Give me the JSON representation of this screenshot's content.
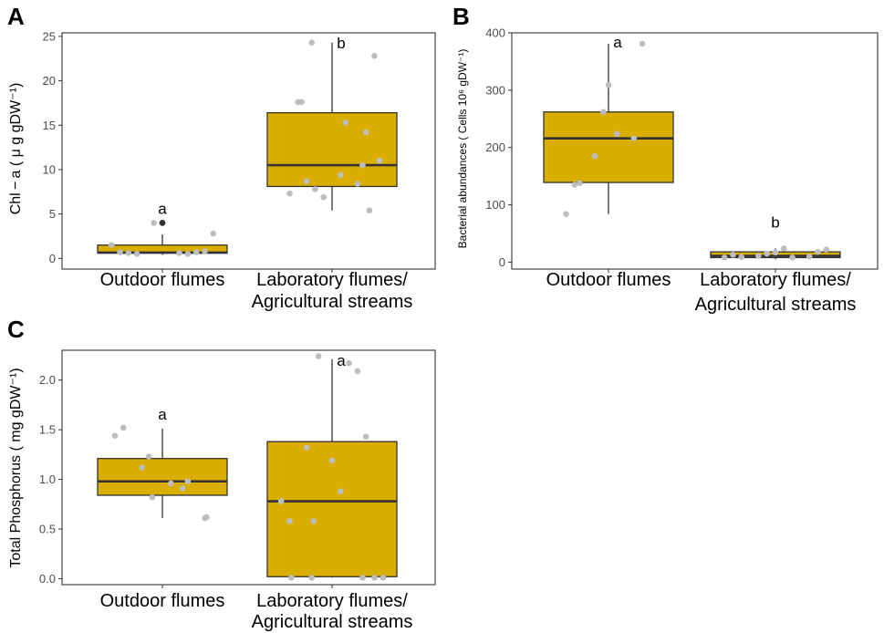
{
  "chart_data": [
    {
      "panel": "A",
      "type": "box",
      "categories": [
        [
          "Outdoor flumes"
        ],
        [
          "Laboratory flumes/",
          "Agricultural streams"
        ]
      ],
      "ylabel": "Chl − a ( μ g gDW⁻¹)",
      "yticks": [
        0,
        5,
        10,
        15,
        20,
        25
      ],
      "ylim": [
        -1.2,
        25.4
      ],
      "fill_color": "#d9ae00",
      "point_color": "#bdbdbd",
      "outlier_color": "#333333",
      "boxes": [
        {
          "q1": 0.6,
          "median": 0.65,
          "q3": 1.5,
          "whisker_low": 0.4,
          "whisker_high": 2.7,
          "outliers": [
            4.0
          ],
          "label": "a"
        },
        {
          "q1": 8.1,
          "median": 10.5,
          "q3": 16.4,
          "whisker_low": 5.4,
          "whisker_high": 24.3,
          "outliers": [],
          "label": "b"
        }
      ],
      "points": [
        [
          [
            -0.3,
            1.5
          ],
          [
            -0.2,
            0.6
          ],
          [
            -0.15,
            0.5
          ],
          [
            -0.05,
            4.0
          ],
          [
            0.1,
            0.6
          ],
          [
            0.15,
            0.5
          ],
          [
            0.2,
            0.7
          ],
          [
            0.25,
            0.8
          ],
          [
            0.3,
            2.8
          ],
          [
            -0.25,
            0.7
          ]
        ],
        [
          [
            -0.25,
            7.3
          ],
          [
            -0.15,
            8.7
          ],
          [
            -0.2,
            17.6
          ],
          [
            -0.18,
            17.6
          ],
          [
            -0.12,
            24.3
          ],
          [
            -0.1,
            7.8
          ],
          [
            -0.05,
            6.9
          ],
          [
            0.05,
            9.4
          ],
          [
            0.08,
            15.3
          ],
          [
            0.15,
            8.4
          ],
          [
            0.18,
            10.5
          ],
          [
            0.2,
            14.2
          ],
          [
            0.22,
            5.4
          ],
          [
            0.28,
            11.0
          ],
          [
            0.25,
            22.8
          ]
        ]
      ]
    },
    {
      "panel": "B",
      "type": "box",
      "categories": [
        [
          "Outdoor flumes"
        ],
        [
          "Laboratory flumes/",
          "Agricultural streams"
        ]
      ],
      "ylabel": "Bacterial abundances ( Cells 10⁶ gDW⁻¹)",
      "yticks": [
        0,
        100,
        200,
        300,
        400
      ],
      "ylim": [
        -12,
        400
      ],
      "fill_color": "#d9ae00",
      "point_color": "#bdbdbd",
      "outlier_color": "#333333",
      "boxes": [
        {
          "q1": 139,
          "median": 216,
          "q3": 262,
          "whisker_low": 84,
          "whisker_high": 381,
          "outliers": [],
          "label": "a"
        },
        {
          "q1": 8,
          "median": 11,
          "q3": 18,
          "whisker_low": 5,
          "whisker_high": 24,
          "outliers": [],
          "label": "b"
        }
      ],
      "points": [
        [
          [
            -0.25,
            84
          ],
          [
            -0.2,
            135
          ],
          [
            -0.17,
            138
          ],
          [
            -0.08,
            185
          ],
          [
            -0.03,
            262
          ],
          [
            0.0,
            309
          ],
          [
            0.05,
            224
          ],
          [
            0.15,
            216
          ],
          [
            0.2,
            381
          ]
        ],
        [
          [
            -0.3,
            8
          ],
          [
            -0.25,
            13
          ],
          [
            -0.2,
            9
          ],
          [
            -0.1,
            11
          ],
          [
            -0.05,
            15
          ],
          [
            0.0,
            17
          ],
          [
            0.05,
            24
          ],
          [
            0.1,
            8
          ],
          [
            0.2,
            10
          ],
          [
            0.25,
            18
          ],
          [
            0.3,
            22
          ]
        ]
      ]
    },
    {
      "panel": "C",
      "type": "box",
      "categories": [
        [
          "Outdoor flumes"
        ],
        [
          "Laboratory flumes/",
          "Agricultural streams"
        ]
      ],
      "ylabel": "Total Phosphorus ( mg gDW⁻¹)",
      "yticks": [
        0.0,
        0.5,
        1.0,
        1.5,
        2.0
      ],
      "yticklabels": [
        "0.0",
        "0.5",
        "1.0",
        "1.5",
        "2.0"
      ],
      "ylim": [
        -0.06,
        2.3
      ],
      "fill_color": "#d9ae00",
      "point_color": "#bdbdbd",
      "outlier_color": "#333333",
      "boxes": [
        {
          "q1": 0.84,
          "median": 0.98,
          "q3": 1.21,
          "whisker_low": 0.61,
          "whisker_high": 1.51,
          "outliers": [],
          "label": "a"
        },
        {
          "q1": 0.02,
          "median": 0.78,
          "q3": 1.38,
          "whisker_low": 0.01,
          "whisker_high": 2.21,
          "outliers": [],
          "label": "a"
        }
      ],
      "points": [
        [
          [
            -0.28,
            1.44
          ],
          [
            -0.23,
            1.52
          ],
          [
            -0.12,
            1.12
          ],
          [
            -0.08,
            1.23
          ],
          [
            -0.06,
            0.82
          ],
          [
            0.05,
            0.96
          ],
          [
            0.12,
            0.91
          ],
          [
            0.15,
            0.98
          ],
          [
            0.25,
            0.61
          ],
          [
            0.26,
            0.62
          ]
        ],
        [
          [
            -0.3,
            0.78
          ],
          [
            -0.25,
            0.58
          ],
          [
            -0.24,
            0.01
          ],
          [
            -0.15,
            1.32
          ],
          [
            -0.12,
            0.01
          ],
          [
            -0.11,
            0.58
          ],
          [
            -0.08,
            2.24
          ],
          [
            0.0,
            1.19
          ],
          [
            0.05,
            0.88
          ],
          [
            0.1,
            2.17
          ],
          [
            0.15,
            2.09
          ],
          [
            0.18,
            0.01
          ],
          [
            0.2,
            1.43
          ],
          [
            0.25,
            0.01
          ],
          [
            0.3,
            0.01
          ]
        ]
      ]
    }
  ]
}
